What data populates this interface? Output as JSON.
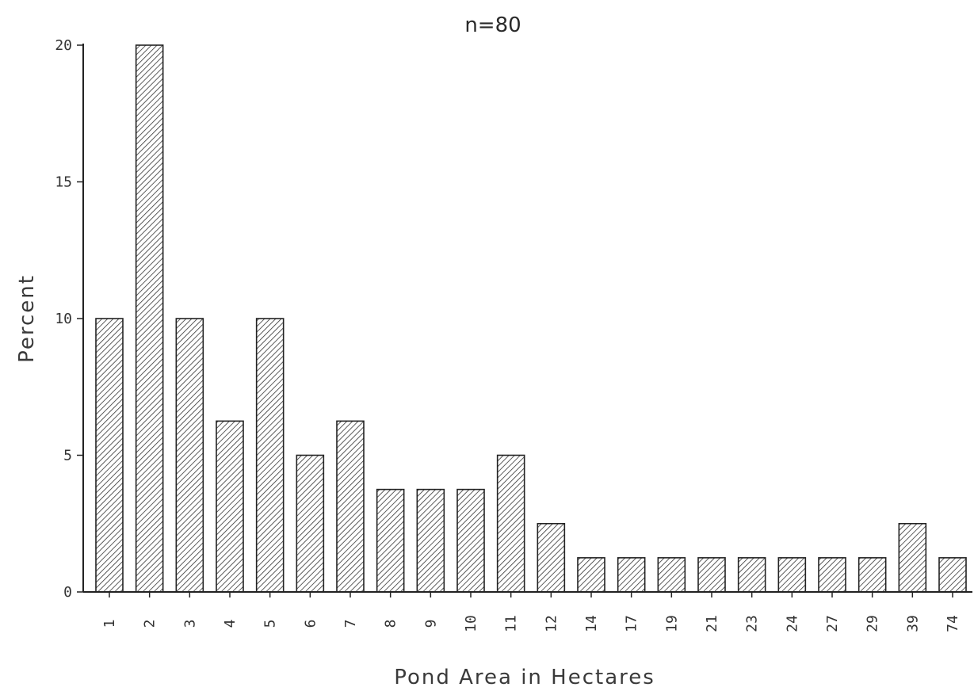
{
  "chart_data": {
    "type": "bar",
    "title": "n=80",
    "xlabel": "Pond Area in Hectares",
    "ylabel": "Percent",
    "categories": [
      "1",
      "2",
      "3",
      "4",
      "5",
      "6",
      "7",
      "8",
      "9",
      "10",
      "11",
      "12",
      "14",
      "17",
      "19",
      "21",
      "23",
      "24",
      "27",
      "29",
      "39",
      "74"
    ],
    "values": [
      10,
      20,
      10,
      6.25,
      10,
      5,
      6.25,
      3.75,
      3.75,
      3.75,
      5,
      2.5,
      1.25,
      1.25,
      1.25,
      1.25,
      1.25,
      1.25,
      1.25,
      1.25,
      2.5,
      1.25
    ],
    "ylim": [
      0,
      20
    ],
    "yticks": [
      0,
      5,
      10,
      15,
      20
    ],
    "ytick_labels": [
      "0",
      "5",
      "10",
      "15",
      "20"
    ],
    "grid": false,
    "bar_pattern": "diagonal-hatch",
    "colors": {
      "bar_fill": "#ffffff",
      "hatch": "#333333",
      "axis": "#222222"
    }
  }
}
